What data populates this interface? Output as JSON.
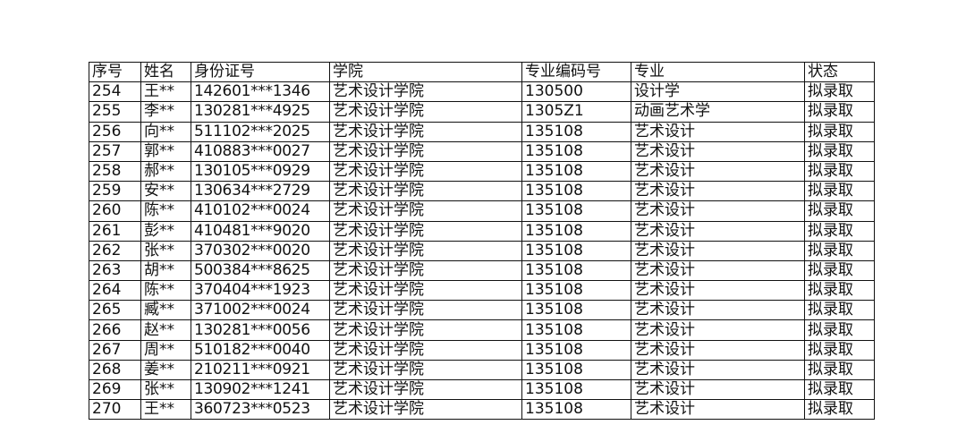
{
  "table": {
    "headers": [
      "序号",
      "姓名",
      "身份证号",
      "学院",
      "专业编码号",
      "专业",
      "状态"
    ],
    "rows": [
      [
        "254",
        "王**",
        "142601***1346",
        "艺术设计学院",
        "130500",
        "设计学",
        "拟录取"
      ],
      [
        "255",
        "李**",
        "130281***4925",
        "艺术设计学院",
        "1305Z1",
        "动画艺术学",
        "拟录取"
      ],
      [
        "256",
        "向**",
        "511102***2025",
        "艺术设计学院",
        "135108",
        "艺术设计",
        "拟录取"
      ],
      [
        "257",
        "郭**",
        "410883***0027",
        "艺术设计学院",
        "135108",
        "艺术设计",
        "拟录取"
      ],
      [
        "258",
        "郝**",
        "130105***0929",
        "艺术设计学院",
        "135108",
        "艺术设计",
        "拟录取"
      ],
      [
        "259",
        "安**",
        "130634***2729",
        "艺术设计学院",
        "135108",
        "艺术设计",
        "拟录取"
      ],
      [
        "260",
        "陈**",
        "410102***0024",
        "艺术设计学院",
        "135108",
        "艺术设计",
        "拟录取"
      ],
      [
        "261",
        "彭**",
        "410481***9020",
        "艺术设计学院",
        "135108",
        "艺术设计",
        "拟录取"
      ],
      [
        "262",
        "张**",
        "370302***0020",
        "艺术设计学院",
        "135108",
        "艺术设计",
        "拟录取"
      ],
      [
        "263",
        "胡**",
        "500384***8625",
        "艺术设计学院",
        "135108",
        "艺术设计",
        "拟录取"
      ],
      [
        "264",
        "陈**",
        "370404***1923",
        "艺术设计学院",
        "135108",
        "艺术设计",
        "拟录取"
      ],
      [
        "265",
        "臧**",
        "371002***0024",
        "艺术设计学院",
        "135108",
        "艺术设计",
        "拟录取"
      ],
      [
        "266",
        "赵**",
        "130281***0056",
        "艺术设计学院",
        "135108",
        "艺术设计",
        "拟录取"
      ],
      [
        "267",
        "周**",
        "510182***0040",
        "艺术设计学院",
        "135108",
        "艺术设计",
        "拟录取"
      ],
      [
        "268",
        "姜**",
        "210211***0921",
        "艺术设计学院",
        "135108",
        "艺术设计",
        "拟录取"
      ],
      [
        "269",
        "张**",
        "130902***1241",
        "艺术设计学院",
        "135108",
        "艺术设计",
        "拟录取"
      ],
      [
        "270",
        "王**",
        "360723***0523",
        "艺术设计学院",
        "135108",
        "艺术设计",
        "拟录取"
      ]
    ]
  }
}
